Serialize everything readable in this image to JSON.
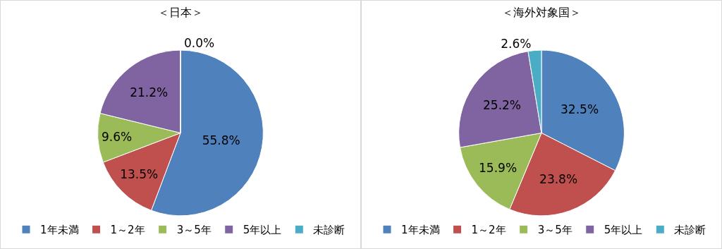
{
  "chart_data": [
    {
      "type": "pie",
      "title": "＜日本＞",
      "categories": [
        "1年未満",
        "1～2年",
        "3～5年",
        "5年以上",
        "未診断"
      ],
      "values": [
        55.8,
        13.5,
        9.6,
        21.2,
        0.0
      ],
      "value_labels": [
        "55.8%",
        "13.5%",
        "9.6%",
        "21.2%",
        "0.0%"
      ],
      "colors": [
        "#4f81bd",
        "#c0504d",
        "#9bbb59",
        "#8064a2",
        "#4bacc6"
      ],
      "legend": "bottom"
    },
    {
      "type": "pie",
      "title": "＜海外対象国＞",
      "categories": [
        "1年未満",
        "1～2年",
        "3～5年",
        "5年以上",
        "未診断"
      ],
      "values": [
        32.5,
        23.8,
        15.9,
        25.2,
        2.6
      ],
      "value_labels": [
        "32.5%",
        "23.8%",
        "15.9%",
        "25.2%",
        "2.6%"
      ],
      "colors": [
        "#4f81bd",
        "#c0504d",
        "#9bbb59",
        "#8064a2",
        "#4bacc6"
      ],
      "legend": "bottom"
    }
  ]
}
